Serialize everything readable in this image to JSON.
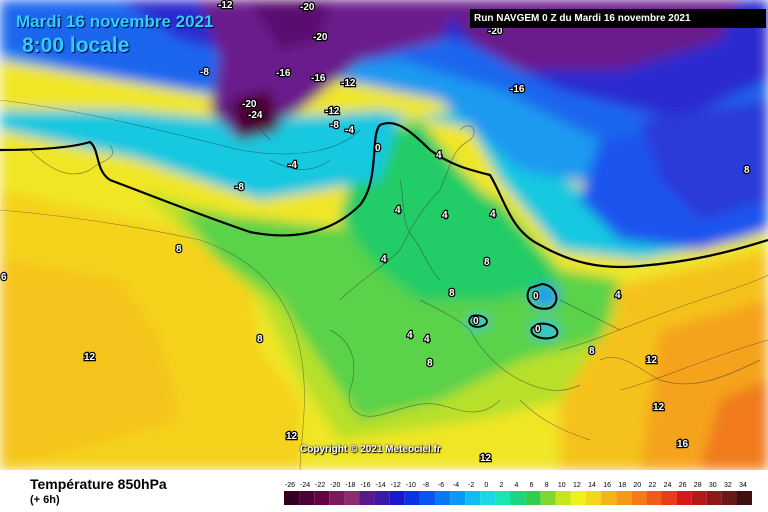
{
  "header": {
    "date_label": "Mardi 16 novembre 2021",
    "time_label": "8:00 locale",
    "run_label": "Run NAVGEM 0 Z du Mardi 16 novembre 2021"
  },
  "map": {
    "copyright": "Copyright © 2021 Meteociel.fr",
    "isotherm_labels": [
      {
        "text": "-12"
      },
      {
        "text": "-20"
      },
      {
        "text": "-20"
      },
      {
        "text": "-16"
      },
      {
        "text": "-16"
      },
      {
        "text": "-12"
      },
      {
        "text": "-8"
      },
      {
        "text": "-20"
      },
      {
        "text": "-24"
      },
      {
        "text": "-12"
      },
      {
        "text": "-8"
      },
      {
        "text": "-4"
      },
      {
        "text": "0"
      },
      {
        "text": "-4"
      },
      {
        "text": "-8"
      },
      {
        "text": "-20"
      },
      {
        "text": "-16"
      },
      {
        "text": "4"
      },
      {
        "text": "4"
      },
      {
        "text": "4"
      },
      {
        "text": "4"
      },
      {
        "text": "8"
      },
      {
        "text": "8"
      },
      {
        "text": "0"
      },
      {
        "text": "0"
      },
      {
        "text": "0"
      },
      {
        "text": "4"
      },
      {
        "text": "4"
      },
      {
        "text": "4"
      },
      {
        "text": "8"
      },
      {
        "text": "8"
      },
      {
        "text": "8"
      },
      {
        "text": "12"
      },
      {
        "text": "8"
      },
      {
        "text": "12"
      },
      {
        "text": "12"
      },
      {
        "text": "12"
      },
      {
        "text": "16"
      },
      {
        "text": "12"
      },
      {
        "text": "6"
      },
      {
        "text": "8"
      },
      {
        "text": "4"
      }
    ]
  },
  "legend": {
    "title": "Température 850hPa",
    "subtitle": "(+ 6h)",
    "scale": [
      {
        "value": "-26",
        "color": "#330022"
      },
      {
        "value": "-24",
        "color": "#4d0033"
      },
      {
        "value": "-22",
        "color": "#660044"
      },
      {
        "value": "-20",
        "color": "#7a1a5c"
      },
      {
        "value": "-18",
        "color": "#8c2d73"
      },
      {
        "value": "-16",
        "color": "#5a1a8c"
      },
      {
        "value": "-14",
        "color": "#3a1aa6"
      },
      {
        "value": "-12",
        "color": "#1a1acc"
      },
      {
        "value": "-10",
        "color": "#0a33e6"
      },
      {
        "value": "-8",
        "color": "#0a55f0"
      },
      {
        "value": "-6",
        "color": "#0a77f5"
      },
      {
        "value": "-4",
        "color": "#0a99f5"
      },
      {
        "value": "-2",
        "color": "#14bbf0"
      },
      {
        "value": "0",
        "color": "#1ad6e6"
      },
      {
        "value": "2",
        "color": "#1ae6b3"
      },
      {
        "value": "4",
        "color": "#1ad680"
      },
      {
        "value": "6",
        "color": "#33cc4d"
      },
      {
        "value": "8",
        "color": "#80d633"
      },
      {
        "value": "10",
        "color": "#c6e61a"
      },
      {
        "value": "12",
        "color": "#f0f01a"
      },
      {
        "value": "14",
        "color": "#f5d61a"
      },
      {
        "value": "16",
        "color": "#f5b31a"
      },
      {
        "value": "18",
        "color": "#f5991a"
      },
      {
        "value": "20",
        "color": "#f57a1a"
      },
      {
        "value": "22",
        "color": "#f05a1a"
      },
      {
        "value": "24",
        "color": "#e63d1a"
      },
      {
        "value": "26",
        "color": "#d61a1a"
      },
      {
        "value": "28",
        "color": "#b31a1a"
      },
      {
        "value": "30",
        "color": "#8c1a1a"
      },
      {
        "value": "32",
        "color": "#661a1a"
      },
      {
        "value": "34",
        "color": "#401010"
      }
    ]
  }
}
